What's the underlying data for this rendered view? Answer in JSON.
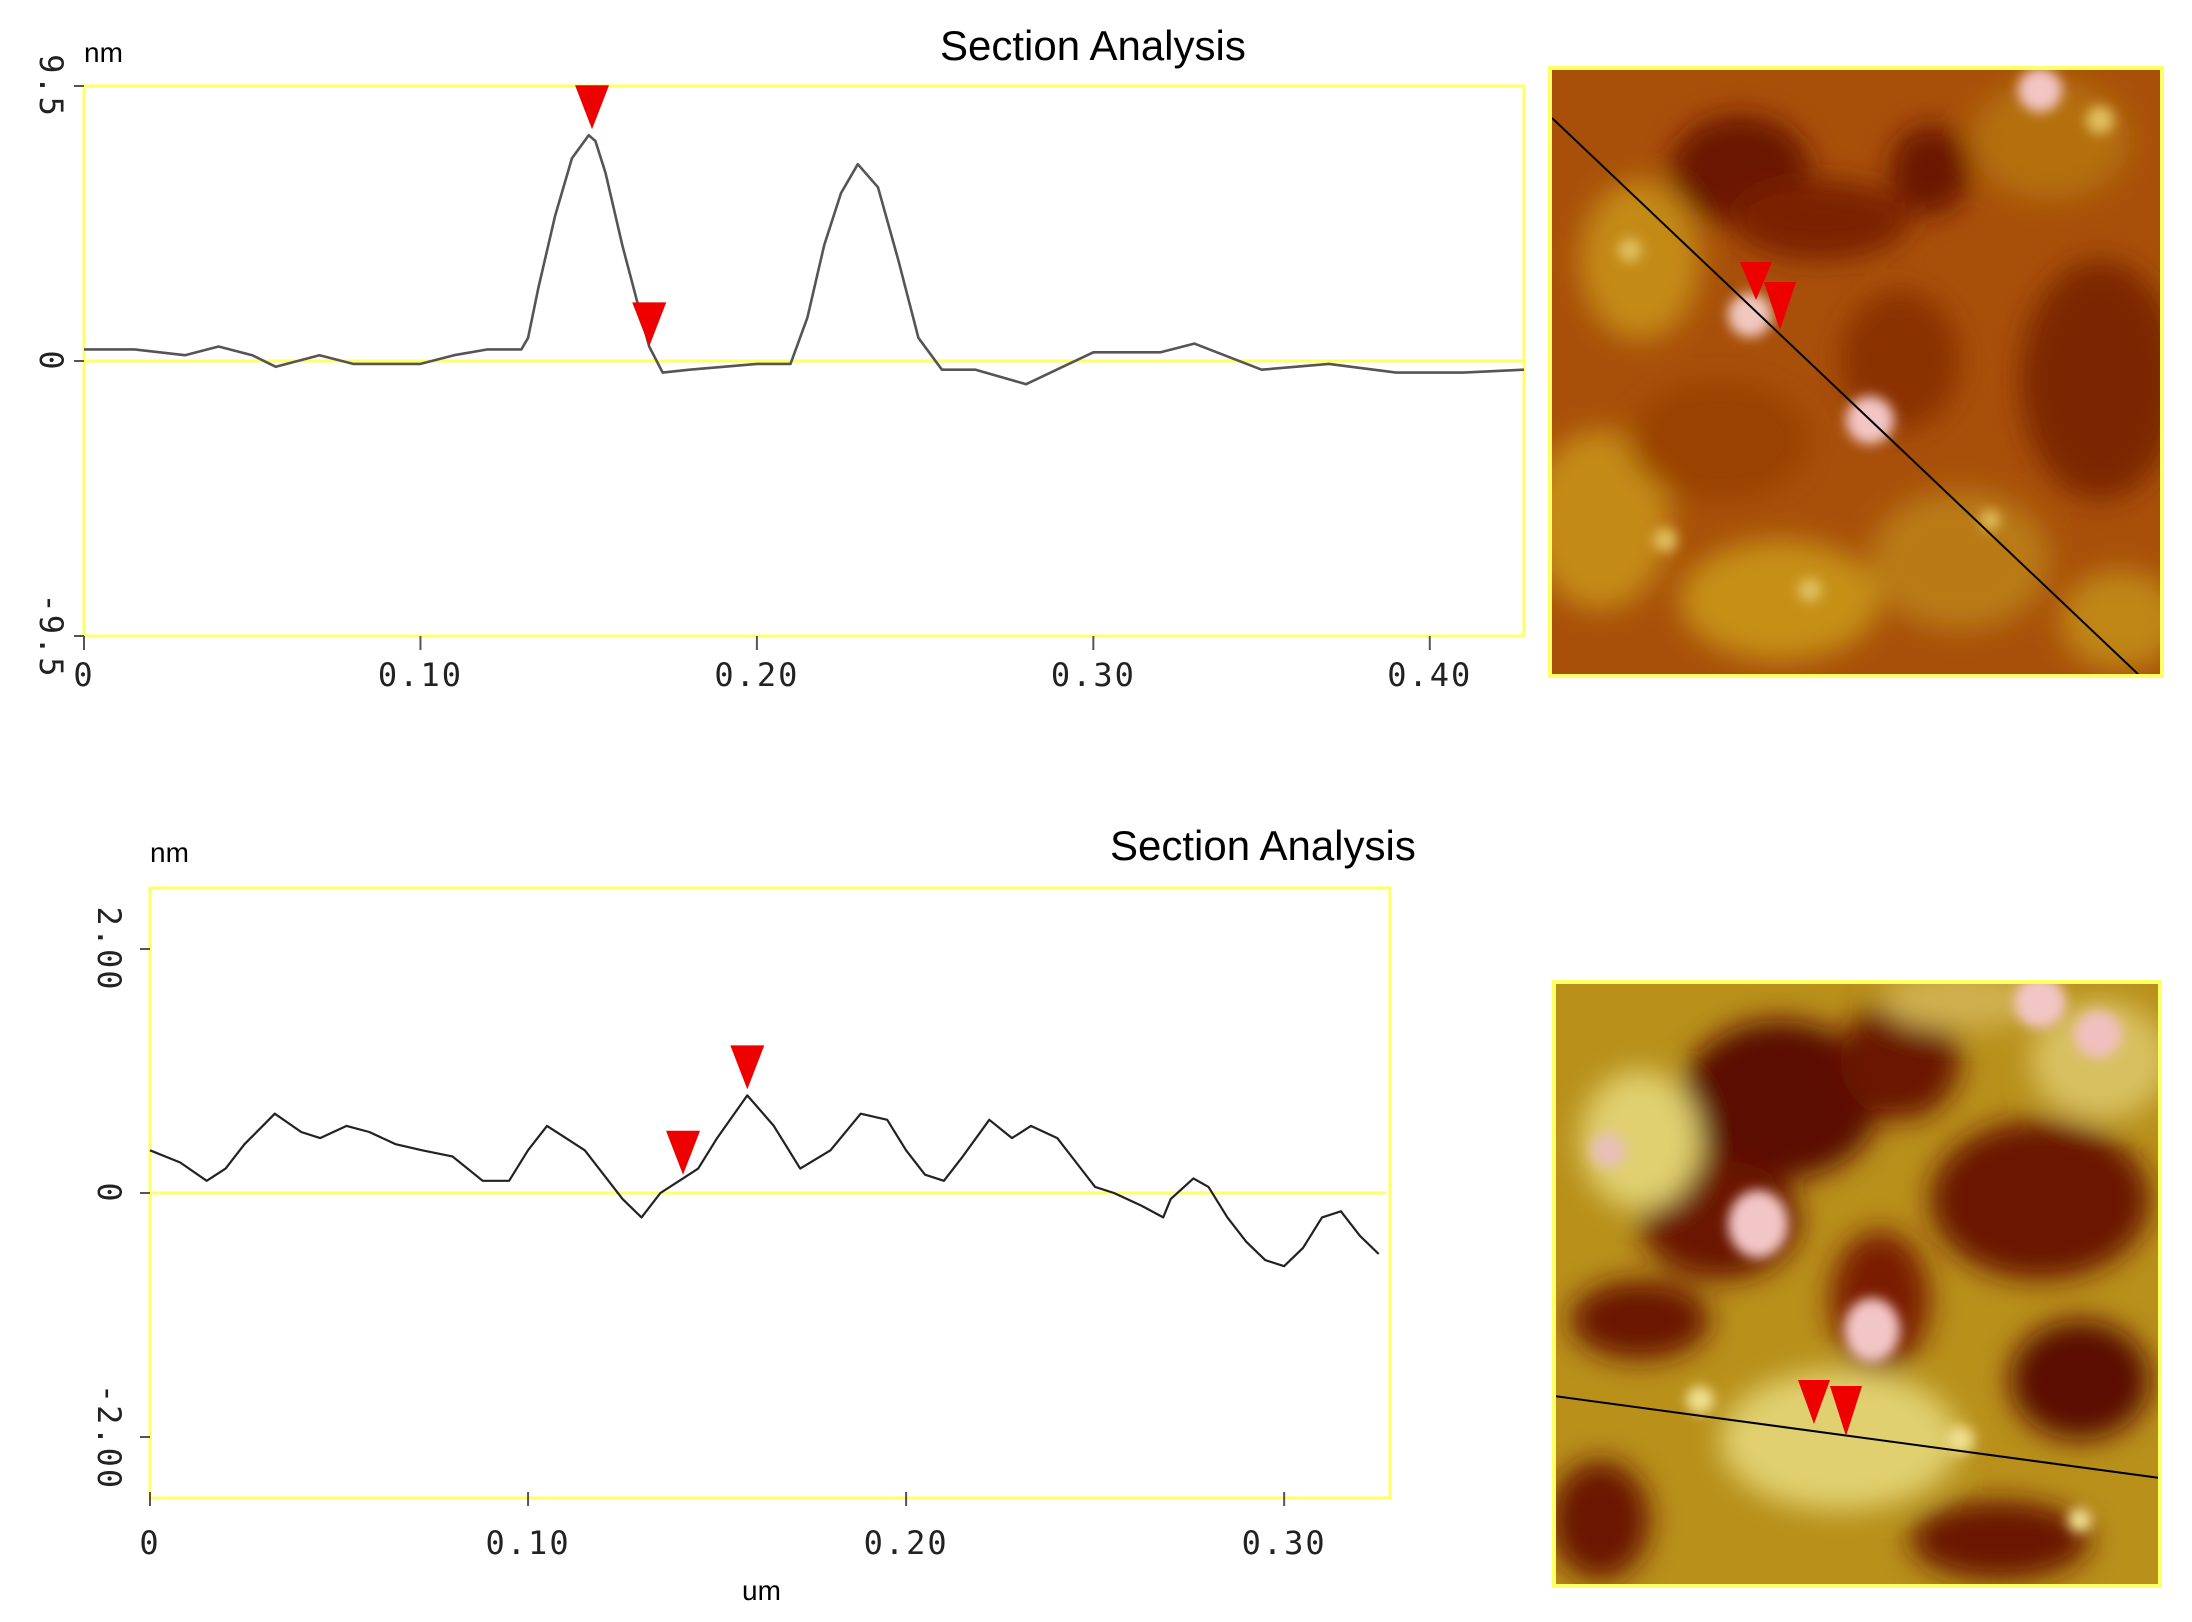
{
  "chart_data": [
    {
      "type": "line",
      "title": "Section Analysis",
      "ylabel": "nm",
      "xlabel": "",
      "xlim": [
        0,
        0.428
      ],
      "ylim": [
        -9.5,
        9.5
      ],
      "yticks": [
        {
          "value": 9.5,
          "label": "9.5"
        },
        {
          "value": 0,
          "label": "0"
        },
        {
          "value": -9.5,
          "label": "-9.5"
        }
      ],
      "xticks": [
        {
          "value": 0,
          "label": "0"
        },
        {
          "value": 0.1,
          "label": "0.10"
        },
        {
          "value": 0.2,
          "label": "0.20"
        },
        {
          "value": 0.3,
          "label": "0.30"
        },
        {
          "value": 0.4,
          "label": "0.40"
        }
      ],
      "grid": false,
      "series": [
        {
          "x": [
            0,
            0.015,
            0.03,
            0.04,
            0.05,
            0.057,
            0.07,
            0.08,
            0.085,
            0.1,
            0.11,
            0.12,
            0.13,
            0.132,
            0.135,
            0.14,
            0.145,
            0.15,
            0.152,
            0.155,
            0.16,
            0.165,
            0.168,
            0.172,
            0.18,
            0.2,
            0.21,
            0.215,
            0.22,
            0.225,
            0.23,
            0.236,
            0.242,
            0.248,
            0.255,
            0.265,
            0.28,
            0.3,
            0.32,
            0.33,
            0.35,
            0.37,
            0.39,
            0.41,
            0.428
          ],
          "y": [
            0.4,
            0.4,
            0.2,
            0.5,
            0.2,
            -0.2,
            0.2,
            -0.1,
            -0.1,
            -0.1,
            0.2,
            0.4,
            0.4,
            0.8,
            2.5,
            5.0,
            7.0,
            7.8,
            7.6,
            6.5,
            4.0,
            1.8,
            0.5,
            -0.4,
            -0.3,
            -0.1,
            -0.1,
            1.5,
            4.0,
            5.8,
            6.8,
            6.0,
            3.5,
            0.8,
            -0.3,
            -0.3,
            -0.8,
            0.3,
            0.3,
            0.6,
            -0.3,
            -0.1,
            -0.4,
            -0.4,
            -0.3
          ]
        }
      ],
      "markers": [
        {
          "x": 0.151,
          "y": 7.8
        },
        {
          "x": 0.168,
          "y": 0.3
        }
      ]
    },
    {
      "type": "line",
      "title": "Section Analysis",
      "ylabel": "nm",
      "xlabel": "um",
      "xlim": [
        0,
        0.328
      ],
      "ylim": [
        -2.5,
        2.5
      ],
      "yticks": [
        {
          "value": 2.0,
          "label": "2.00"
        },
        {
          "value": 0,
          "label": "0"
        },
        {
          "value": -2.0,
          "label": "-2.00"
        }
      ],
      "xticks": [
        {
          "value": 0,
          "label": "0"
        },
        {
          "value": 0.1,
          "label": "0.10"
        },
        {
          "value": 0.2,
          "label": "0.20"
        },
        {
          "value": 0.3,
          "label": "0.30"
        }
      ],
      "grid": false,
      "series": [
        {
          "x": [
            0,
            0.008,
            0.015,
            0.02,
            0.025,
            0.033,
            0.04,
            0.045,
            0.052,
            0.058,
            0.065,
            0.072,
            0.08,
            0.088,
            0.095,
            0.1,
            0.105,
            0.11,
            0.115,
            0.12,
            0.125,
            0.13,
            0.135,
            0.14,
            0.145,
            0.15,
            0.158,
            0.165,
            0.172,
            0.18,
            0.188,
            0.195,
            0.2,
            0.205,
            0.21,
            0.215,
            0.222,
            0.228,
            0.233,
            0.24,
            0.245,
            0.25,
            0.255,
            0.262,
            0.268,
            0.27,
            0.276,
            0.28,
            0.285,
            0.29,
            0.295,
            0.3,
            0.305,
            0.31,
            0.315,
            0.32,
            0.325
          ],
          "y": [
            0.35,
            0.25,
            0.1,
            0.2,
            0.4,
            0.65,
            0.5,
            0.45,
            0.55,
            0.5,
            0.4,
            0.35,
            0.3,
            0.1,
            0.1,
            0.35,
            0.55,
            0.45,
            0.35,
            0.15,
            -0.05,
            -0.2,
            0.0,
            0.1,
            0.2,
            0.45,
            0.8,
            0.55,
            0.2,
            0.35,
            0.65,
            0.6,
            0.35,
            0.15,
            0.1,
            0.3,
            0.6,
            0.45,
            0.55,
            0.45,
            0.25,
            0.05,
            0.0,
            -0.1,
            -0.2,
            -0.05,
            0.12,
            0.05,
            -0.2,
            -0.4,
            -0.55,
            -0.6,
            -0.45,
            -0.2,
            -0.15,
            -0.35,
            -0.5
          ]
        }
      ],
      "markers": [
        {
          "x": 0.141,
          "y": 0.1
        },
        {
          "x": 0.158,
          "y": 0.8
        }
      ]
    }
  ],
  "images": [
    {
      "name": "afm-height-image-top",
      "description_colors": [
        "#8a2e00",
        "#b35a05",
        "#c88a14",
        "#e0c060",
        "#f3c6c6"
      ]
    },
    {
      "name": "afm-height-image-bottom",
      "description_colors": [
        "#5a0a00",
        "#8a2e00",
        "#c8a020",
        "#e0d070",
        "#f3c6c6"
      ]
    }
  ],
  "colors": {
    "frame": "#ffff66",
    "zero_line": "#ffff66",
    "marker": "#ee0000",
    "profile": "#555555"
  }
}
